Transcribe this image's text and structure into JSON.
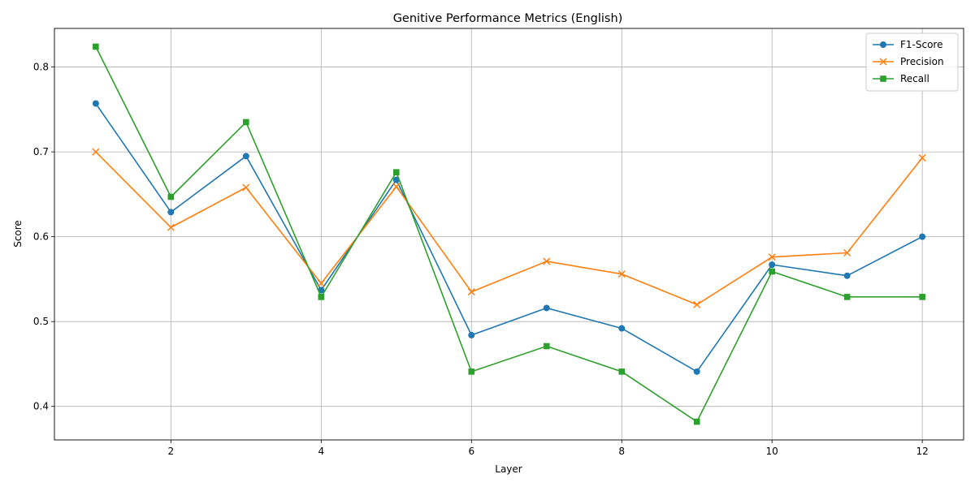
{
  "chart_data": {
    "type": "line",
    "title": "Genitive Performance Metrics (English)",
    "xlabel": "Layer",
    "ylabel": "Score",
    "x": [
      1,
      2,
      3,
      4,
      5,
      6,
      7,
      8,
      9,
      10,
      11,
      12
    ],
    "xlim": [
      0.45,
      12.55
    ],
    "ylim": [
      0.3605,
      0.8455
    ],
    "xticks": [
      2,
      4,
      6,
      8,
      10,
      12
    ],
    "yticks": [
      0.4,
      0.5,
      0.6,
      0.7,
      0.8
    ],
    "xtick_labels": [
      "2",
      "4",
      "6",
      "8",
      "10",
      "12"
    ],
    "ytick_labels": [
      "0.4",
      "0.5",
      "0.6",
      "0.7",
      "0.8"
    ],
    "grid": true,
    "legend_position": "top-right",
    "series": [
      {
        "name": "F1-Score",
        "color": "#1f77b4",
        "marker": "circle",
        "values": [
          0.757,
          0.629,
          0.695,
          0.537,
          0.667,
          0.484,
          0.516,
          0.492,
          0.441,
          0.567,
          0.554,
          0.6
        ]
      },
      {
        "name": "Precision",
        "color": "#ff7f0e",
        "marker": "x",
        "values": [
          0.7,
          0.611,
          0.658,
          0.545,
          0.659,
          0.535,
          0.571,
          0.556,
          0.52,
          0.576,
          0.581,
          0.693
        ]
      },
      {
        "name": "Recall",
        "color": "#2ca02c",
        "marker": "square",
        "values": [
          0.824,
          0.647,
          0.735,
          0.529,
          0.676,
          0.441,
          0.471,
          0.441,
          0.382,
          0.559,
          0.529,
          0.529
        ]
      }
    ]
  }
}
